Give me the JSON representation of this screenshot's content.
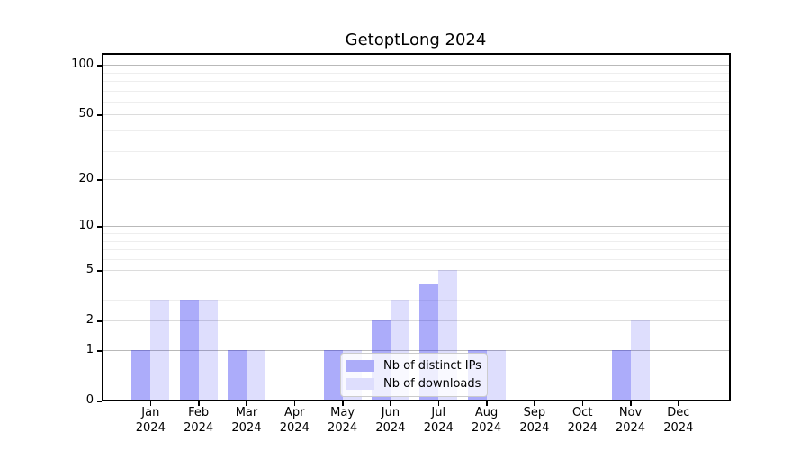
{
  "chart_data": {
    "type": "bar",
    "title": "GetoptLong 2024",
    "categories": [
      "Jan",
      "Feb",
      "Mar",
      "Apr",
      "May",
      "Jun",
      "Jul",
      "Aug",
      "Sep",
      "Oct",
      "Nov",
      "Dec"
    ],
    "x_second_line": "2024",
    "series": [
      {
        "name": "Nb of distinct IPs",
        "bar_color": "rgba(25,25,240,0.36)",
        "swatch_color": "#acacf9",
        "values": [
          1,
          3,
          1,
          0,
          1,
          2,
          4,
          1,
          0,
          0,
          1,
          0
        ]
      },
      {
        "name": "Nb of downloads",
        "bar_color": "rgba(25,25,240,0.145)",
        "swatch_color": "#dedefd",
        "values": [
          3,
          3,
          1,
          0,
          1,
          3,
          5,
          1,
          0,
          0,
          2,
          0
        ]
      }
    ],
    "y_axis": {
      "scale": "log1p",
      "labeled_ticks": [
        0,
        1,
        2,
        5,
        10,
        20,
        50,
        100
      ],
      "minor_ticks": [
        3,
        4,
        6,
        7,
        8,
        9,
        30,
        40,
        60,
        70,
        80,
        90
      ],
      "emphasized_gridlines": [
        1,
        10,
        100
      ],
      "max": 116
    },
    "legend": {
      "position": "lower center"
    },
    "grid": true
  }
}
